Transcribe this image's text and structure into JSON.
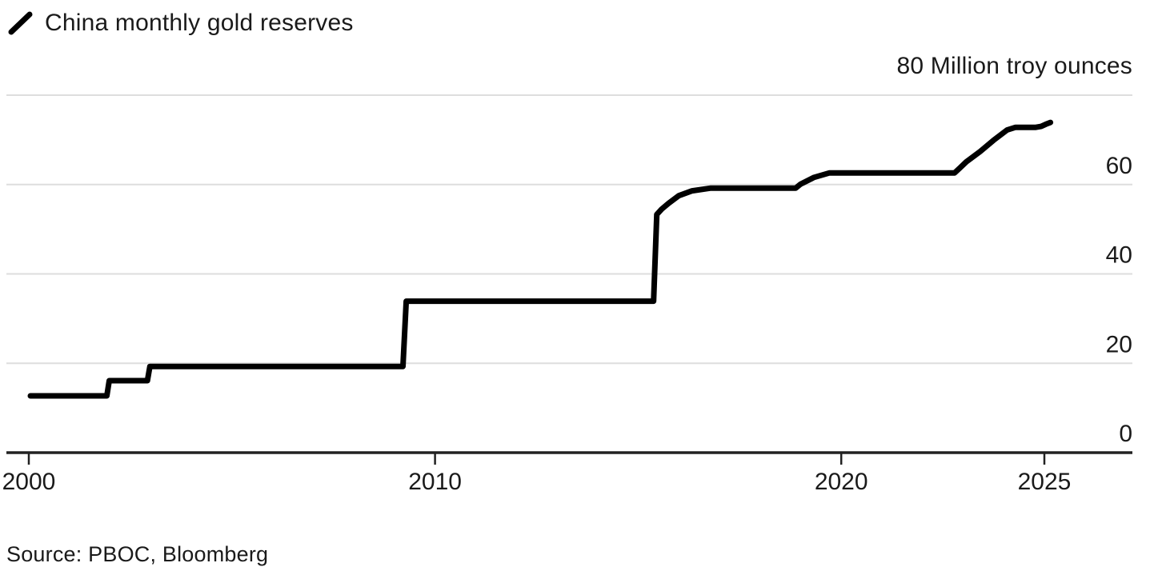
{
  "legend": {
    "marker": "diagonal-line",
    "label": "China monthly gold reserves"
  },
  "axis_title": "80 Million troy ounces",
  "source": "Source: PBOC, Bloomberg",
  "colors": {
    "line": "#000000",
    "grid": "#dedede",
    "axis": "#222222",
    "text": "#1a1a1a",
    "background": "#ffffff"
  },
  "chart_data": {
    "type": "line",
    "style": "step",
    "title": "China monthly gold reserves",
    "ylabel": "Million troy ounces",
    "xlabel": "",
    "ylim": [
      0,
      80
    ],
    "xlim": [
      2000,
      2026
    ],
    "grid": "horizontal",
    "legend_position": "top-left",
    "yticks": [
      {
        "value": 80,
        "label": ""
      },
      {
        "value": 60,
        "label": "60"
      },
      {
        "value": 40,
        "label": "40"
      },
      {
        "value": 20,
        "label": "20"
      },
      {
        "value": 0,
        "label": "0"
      }
    ],
    "xticks": [
      {
        "value": 2000,
        "label": "2000"
      },
      {
        "value": 2010,
        "label": "2010"
      },
      {
        "value": 2020,
        "label": "2020"
      },
      {
        "value": 2025,
        "label": "2025"
      }
    ],
    "series": [
      {
        "name": "China monthly gold reserves",
        "units": "million troy ounces",
        "points": [
          [
            2000.04,
            12.7
          ],
          [
            2001.92,
            12.7
          ],
          [
            2001.98,
            16.1
          ],
          [
            2002.92,
            16.1
          ],
          [
            2002.98,
            19.3
          ],
          [
            2009.21,
            19.3
          ],
          [
            2009.29,
            33.9
          ],
          [
            2015.38,
            33.9
          ],
          [
            2015.46,
            53.3
          ],
          [
            2015.58,
            54.5
          ],
          [
            2015.75,
            55.8
          ],
          [
            2016.0,
            57.5
          ],
          [
            2016.33,
            58.6
          ],
          [
            2016.79,
            59.2
          ],
          [
            2018.88,
            59.2
          ],
          [
            2019.0,
            60.1
          ],
          [
            2019.33,
            61.6
          ],
          [
            2019.71,
            62.6
          ],
          [
            2022.79,
            62.6
          ],
          [
            2022.92,
            63.7
          ],
          [
            2023.08,
            65.1
          ],
          [
            2023.42,
            67.4
          ],
          [
            2023.75,
            69.9
          ],
          [
            2024.08,
            72.2
          ],
          [
            2024.29,
            72.8
          ],
          [
            2024.79,
            72.8
          ],
          [
            2024.92,
            73.0
          ],
          [
            2025.04,
            73.5
          ],
          [
            2025.15,
            73.9
          ]
        ]
      }
    ]
  }
}
